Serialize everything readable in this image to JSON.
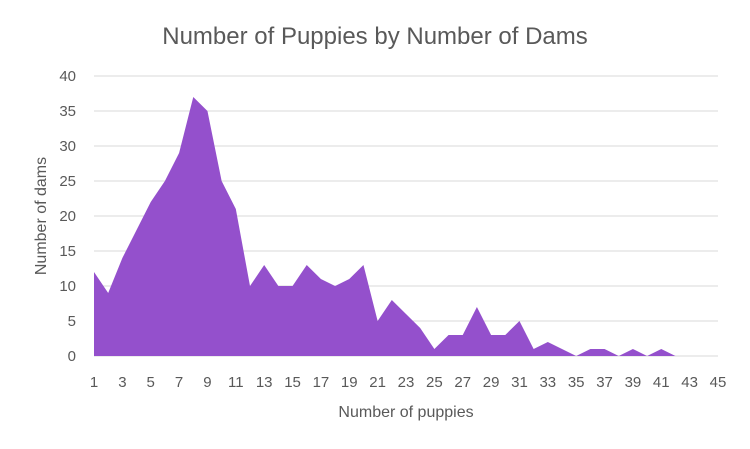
{
  "chart_data": {
    "type": "area",
    "title": "Number of Puppies by Number of Dams",
    "xlabel": "Number of puppies",
    "ylabel": "Number of dams",
    "x": [
      1,
      2,
      3,
      4,
      5,
      6,
      7,
      8,
      9,
      10,
      11,
      12,
      13,
      14,
      15,
      16,
      17,
      18,
      19,
      20,
      21,
      22,
      23,
      24,
      25,
      26,
      27,
      28,
      29,
      30,
      31,
      32,
      33,
      34,
      35,
      36,
      37,
      38,
      39,
      40,
      41,
      42,
      43,
      44,
      45
    ],
    "values": [
      12,
      9,
      14,
      18,
      22,
      25,
      29,
      37,
      35,
      25,
      21,
      10,
      13,
      10,
      10,
      13,
      11,
      10,
      11,
      13,
      5,
      8,
      6,
      4,
      1,
      3,
      3,
      7,
      3,
      3,
      5,
      1,
      2,
      1,
      0,
      1,
      1,
      0,
      1,
      0,
      1,
      0,
      0,
      0,
      0
    ],
    "xlim": [
      1,
      45
    ],
    "ylim": [
      0,
      40
    ],
    "x_ticks": [
      1,
      3,
      5,
      7,
      9,
      11,
      13,
      15,
      17,
      19,
      21,
      23,
      25,
      27,
      29,
      31,
      33,
      35,
      37,
      39,
      41,
      43,
      45
    ],
    "y_ticks": [
      0,
      5,
      10,
      15,
      20,
      25,
      30,
      35,
      40
    ],
    "grid": "horizontal",
    "colors": {
      "fill": "#9450cc",
      "grid": "#d9d9d9",
      "text": "#595959"
    }
  }
}
